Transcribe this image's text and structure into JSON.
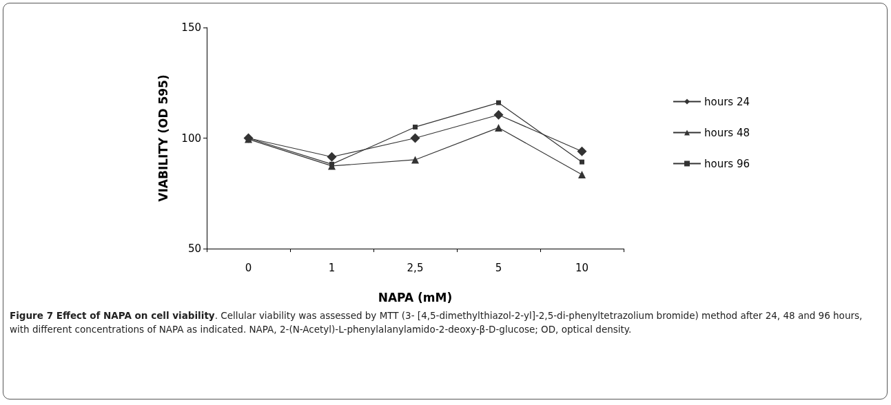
{
  "chart_data": {
    "type": "line",
    "title": "Figure 7 Effect of NAPA on cell viability",
    "xlabel": "NAPA (mM)",
    "ylabel": "VIABILITY (OD 595)",
    "annotations": [
      ". Cellular viability was assessed by MTT (3- [4,5-dimethylthiazol-2-yl]-2,5-di-phenyltetrazolium bromide) method after 24, 48 and 96 hours, with different concentrations of NAPA as indicated. NAPA, 2-(N-Acetyl)-L-phenylalanylamido-2-deoxy-β-D-glucose; OD, optical density."
    ],
    "categories": [
      "0",
      "1",
      "2,5",
      "5",
      "10"
    ],
    "series": [
      {
        "name": "hours 24",
        "color": "#333333",
        "marker": "diamond",
        "values": [
          100,
          91.5,
          100,
          110.5,
          94
        ]
      },
      {
        "name": "hours 48",
        "color": "#333333",
        "marker": "triangle",
        "values": [
          99.5,
          87.4,
          90.2,
          104.7,
          83.5
        ]
      },
      {
        "name": "hours 96",
        "color": "#333333",
        "marker": "square",
        "values": [
          100,
          88.2,
          105,
          116,
          89.2
        ]
      }
    ],
    "ylim": [
      50,
      150
    ],
    "yticks": [
      50,
      100,
      150
    ],
    "grid": false,
    "legend": "right",
    "line_style": "solid"
  }
}
